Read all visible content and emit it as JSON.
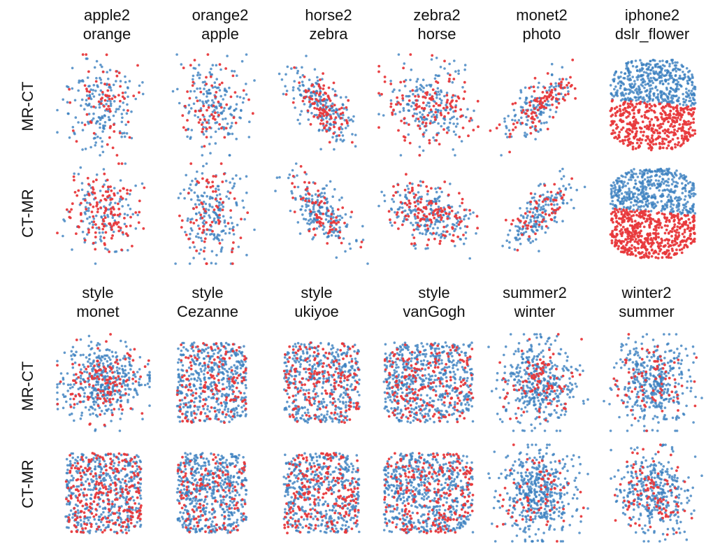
{
  "colors": {
    "class_a": "#3b7fbf",
    "class_b": "#e8383b"
  },
  "row_labels": [
    "MR-CT",
    "CT-MR",
    "MR-CT",
    "CT-MR"
  ],
  "column_titles_top": [
    [
      "apple2",
      "orange"
    ],
    [
      "orange2",
      "apple"
    ],
    [
      "horse2",
      "zebra"
    ],
    [
      "zebra2",
      "horse"
    ],
    [
      "monet2",
      "photo"
    ],
    [
      "iphone2",
      "dslr_flower"
    ]
  ],
  "column_titles_bottom": [
    [
      "style",
      "monet"
    ],
    [
      "style",
      "Cezanne"
    ],
    [
      "style",
      "ukiyoe"
    ],
    [
      "style",
      "vanGogh"
    ],
    [
      "summer2",
      "winter"
    ],
    [
      "winter2",
      "summer"
    ]
  ],
  "chart_data": {
    "type": "scatter",
    "description_source": "grid of 24 scatter panels (t-SNE style embeddings)",
    "panels": [
      {
        "row": 0,
        "col": 0,
        "shape": "blob",
        "n": 240,
        "red_frac": 0.3
      },
      {
        "row": 0,
        "col": 1,
        "shape": "blob",
        "n": 240,
        "red_frac": 0.3
      },
      {
        "row": 0,
        "col": 2,
        "shape": "diag_down",
        "n": 300,
        "red_frac": 0.35
      },
      {
        "row": 0,
        "col": 3,
        "shape": "blob_wide",
        "n": 320,
        "red_frac": 0.4
      },
      {
        "row": 0,
        "col": 4,
        "shape": "diag_up",
        "n": 240,
        "red_frac": 0.35
      },
      {
        "row": 0,
        "col": 5,
        "shape": "split",
        "n": 900,
        "red_frac": 0.5
      },
      {
        "row": 1,
        "col": 0,
        "shape": "blob",
        "n": 260,
        "red_frac": 0.55
      },
      {
        "row": 1,
        "col": 1,
        "shape": "blob",
        "n": 260,
        "red_frac": 0.35
      },
      {
        "row": 1,
        "col": 2,
        "shape": "diag_down",
        "n": 260,
        "red_frac": 0.3
      },
      {
        "row": 1,
        "col": 3,
        "shape": "diag_down_wide",
        "n": 340,
        "red_frac": 0.4
      },
      {
        "row": 1,
        "col": 4,
        "shape": "diag_up",
        "n": 230,
        "red_frac": 0.25
      },
      {
        "row": 1,
        "col": 5,
        "shape": "split",
        "n": 1000,
        "red_frac": 0.5
      },
      {
        "row": 2,
        "col": 0,
        "shape": "blob_wide",
        "n": 520,
        "red_frac": 0.25
      },
      {
        "row": 2,
        "col": 1,
        "shape": "cloud",
        "n": 600,
        "red_frac": 0.25
      },
      {
        "row": 2,
        "col": 2,
        "shape": "cloud",
        "n": 600,
        "red_frac": 0.3
      },
      {
        "row": 2,
        "col": 3,
        "shape": "cloud_wide",
        "n": 750,
        "red_frac": 0.25
      },
      {
        "row": 2,
        "col": 4,
        "shape": "blob",
        "n": 480,
        "red_frac": 0.2
      },
      {
        "row": 2,
        "col": 5,
        "shape": "blob",
        "n": 460,
        "red_frac": 0.2
      },
      {
        "row": 3,
        "col": 0,
        "shape": "cloud",
        "n": 700,
        "red_frac": 0.35
      },
      {
        "row": 3,
        "col": 1,
        "shape": "cloud",
        "n": 650,
        "red_frac": 0.2
      },
      {
        "row": 3,
        "col": 2,
        "shape": "cloud",
        "n": 650,
        "red_frac": 0.35
      },
      {
        "row": 3,
        "col": 3,
        "shape": "cloud_wide",
        "n": 800,
        "red_frac": 0.3
      },
      {
        "row": 3,
        "col": 4,
        "shape": "blob",
        "n": 520,
        "red_frac": 0.15
      },
      {
        "row": 3,
        "col": 5,
        "shape": "blob",
        "n": 440,
        "red_frac": 0.2
      }
    ]
  }
}
